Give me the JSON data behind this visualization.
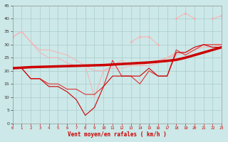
{
  "x": [
    0,
    1,
    2,
    3,
    4,
    5,
    6,
    7,
    8,
    9,
    10,
    11,
    12,
    13,
    14,
    15,
    16,
    17,
    18,
    19,
    20,
    21,
    22,
    23
  ],
  "line_avg": [
    21,
    21,
    17,
    17,
    14,
    14,
    12,
    9,
    3,
    6,
    14,
    18,
    18,
    18,
    18,
    21,
    18,
    18,
    27,
    27,
    29,
    30,
    29,
    29
  ],
  "line_gust": [
    21,
    21,
    17,
    17,
    15,
    15,
    13,
    13,
    11,
    11,
    14,
    24,
    18,
    18,
    15,
    20,
    18,
    18,
    28,
    26,
    28,
    30,
    30,
    30
  ],
  "line_pink1": [
    33,
    35,
    31,
    27,
    25,
    25,
    23,
    22,
    22,
    10,
    20,
    22,
    24,
    22,
    22,
    22,
    23,
    25,
    27,
    27,
    29,
    30,
    30,
    30
  ],
  "line_pink2": [
    33,
    35,
    31,
    28,
    28,
    27,
    26,
    24,
    22,
    20,
    20,
    21,
    21,
    22,
    22,
    23,
    24,
    25,
    26,
    27,
    28,
    29,
    29,
    30
  ],
  "line_pink3": [
    33,
    null,
    null,
    null,
    null,
    null,
    null,
    null,
    null,
    null,
    null,
    null,
    null,
    null,
    null,
    null,
    null,
    null,
    null,
    null,
    null,
    null,
    null,
    41
  ],
  "line_pink4": [
    null,
    null,
    null,
    null,
    null,
    null,
    null,
    null,
    null,
    null,
    null,
    null,
    null,
    31,
    33,
    33,
    30,
    null,
    40,
    42,
    40,
    null,
    40,
    41
  ],
  "trend": [
    21,
    21.2,
    21.4,
    21.5,
    21.6,
    21.7,
    21.8,
    21.9,
    22,
    22.1,
    22.2,
    22.4,
    22.6,
    22.8,
    23,
    23.2,
    23.5,
    23.8,
    24.2,
    25,
    26,
    27,
    28,
    29
  ],
  "bg_color": "#cce8e8",
  "grid_color": "#aacccc",
  "line_avg_color": "#cc0000",
  "line_gust_color": "#dd3333",
  "line_pink_color": "#ffaaaa",
  "trend_color": "#cc0000",
  "xlabel": "Vent moyen/en rafales ( km/h )",
  "ylim": [
    0,
    45
  ],
  "xlim": [
    0,
    23
  ],
  "yticks": [
    0,
    5,
    10,
    15,
    20,
    25,
    30,
    35,
    40,
    45
  ],
  "xticks": [
    0,
    1,
    2,
    3,
    4,
    5,
    6,
    7,
    8,
    9,
    10,
    11,
    12,
    13,
    14,
    15,
    16,
    17,
    18,
    19,
    20,
    21,
    22,
    23
  ]
}
